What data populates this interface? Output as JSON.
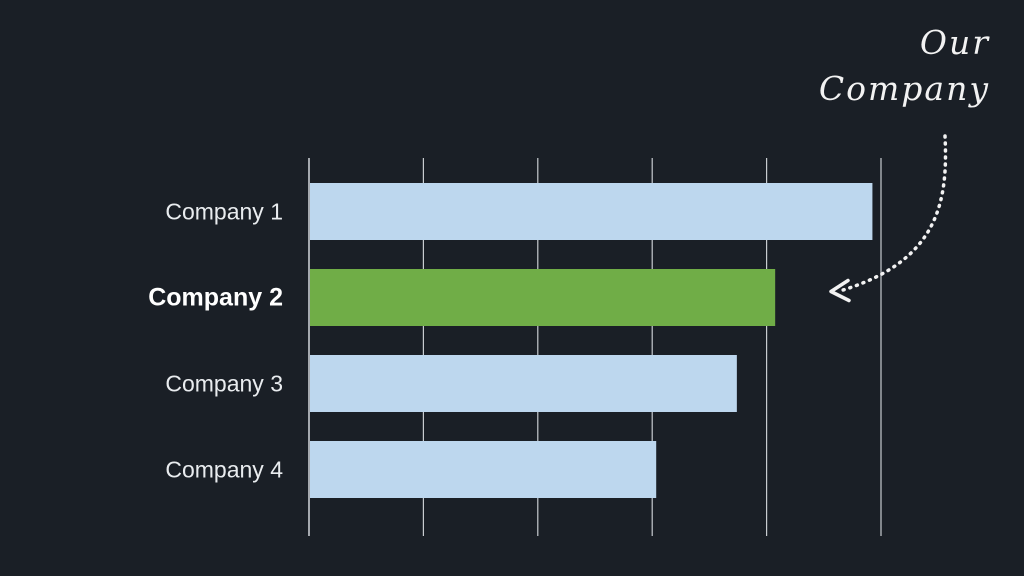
{
  "chart_data": {
    "type": "bar",
    "orientation": "horizontal",
    "categories": [
      "Company 1",
      "Company 2",
      "Company 3",
      "Company 4"
    ],
    "values": [
      98.5,
      81.5,
      74.8,
      60.7
    ],
    "highlight_index": 1,
    "xlim": [
      0,
      100
    ],
    "xticks": [
      0,
      20,
      40,
      60,
      80,
      100
    ],
    "grid": true,
    "title": "",
    "xlabel": "",
    "ylabel": "",
    "annotation": {
      "lines": [
        "Our",
        "Company"
      ],
      "target": "Company 2"
    }
  },
  "colors": {
    "background": "#1a1f26",
    "bar": "#bdd7ee",
    "highlight": "#70ad47",
    "grid": "#c8ccd0",
    "annotation": "#f2f2f2"
  }
}
